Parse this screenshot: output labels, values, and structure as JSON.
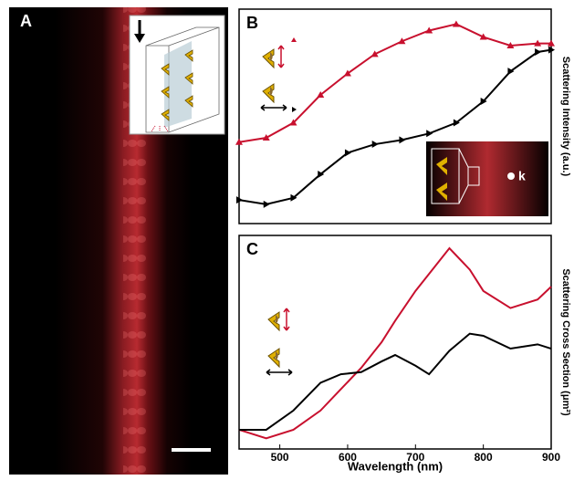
{
  "image_panel": {
    "panel": "A"
  },
  "chart_data": [
    {
      "type": "line",
      "panel": "B",
      "ylabel": "Scattering Intensity (a.u.)",
      "annotation": "k",
      "xlim": [
        440,
        900
      ],
      "ylim": [
        0,
        1
      ],
      "x": [
        440,
        480,
        520,
        560,
        600,
        640,
        680,
        720,
        760,
        800,
        840,
        880,
        900
      ],
      "series": [
        {
          "color": "#c8102e",
          "marker": "triangle-up",
          "values": [
            0.38,
            0.4,
            0.47,
            0.6,
            0.7,
            0.79,
            0.85,
            0.9,
            0.93,
            0.87,
            0.83,
            0.84,
            0.84
          ]
        },
        {
          "color": "#000000",
          "marker": "triangle-right",
          "values": [
            0.11,
            0.09,
            0.12,
            0.23,
            0.33,
            0.37,
            0.39,
            0.42,
            0.47,
            0.57,
            0.71,
            0.8,
            0.81
          ]
        }
      ]
    },
    {
      "type": "line",
      "panel": "C",
      "ylabel": "Scattering Cross Section (μm²)",
      "xlabel": "Wavelength (nm)",
      "xlim": [
        440,
        900
      ],
      "ylim": [
        0,
        1
      ],
      "xticks": [
        500,
        600,
        700,
        800,
        900
      ],
      "x": [
        440,
        480,
        520,
        560,
        590,
        620,
        650,
        670,
        700,
        720,
        750,
        780,
        800,
        840,
        880,
        900
      ],
      "series": [
        {
          "color": "#c8102e",
          "values": [
            0.09,
            0.05,
            0.09,
            0.18,
            0.28,
            0.38,
            0.5,
            0.6,
            0.74,
            0.82,
            0.94,
            0.84,
            0.74,
            0.66,
            0.7,
            0.76
          ]
        },
        {
          "color": "#000000",
          "values": [
            0.09,
            0.09,
            0.18,
            0.31,
            0.35,
            0.36,
            0.41,
            0.44,
            0.39,
            0.35,
            0.46,
            0.54,
            0.53,
            0.47,
            0.49,
            0.47
          ]
        }
      ]
    }
  ]
}
